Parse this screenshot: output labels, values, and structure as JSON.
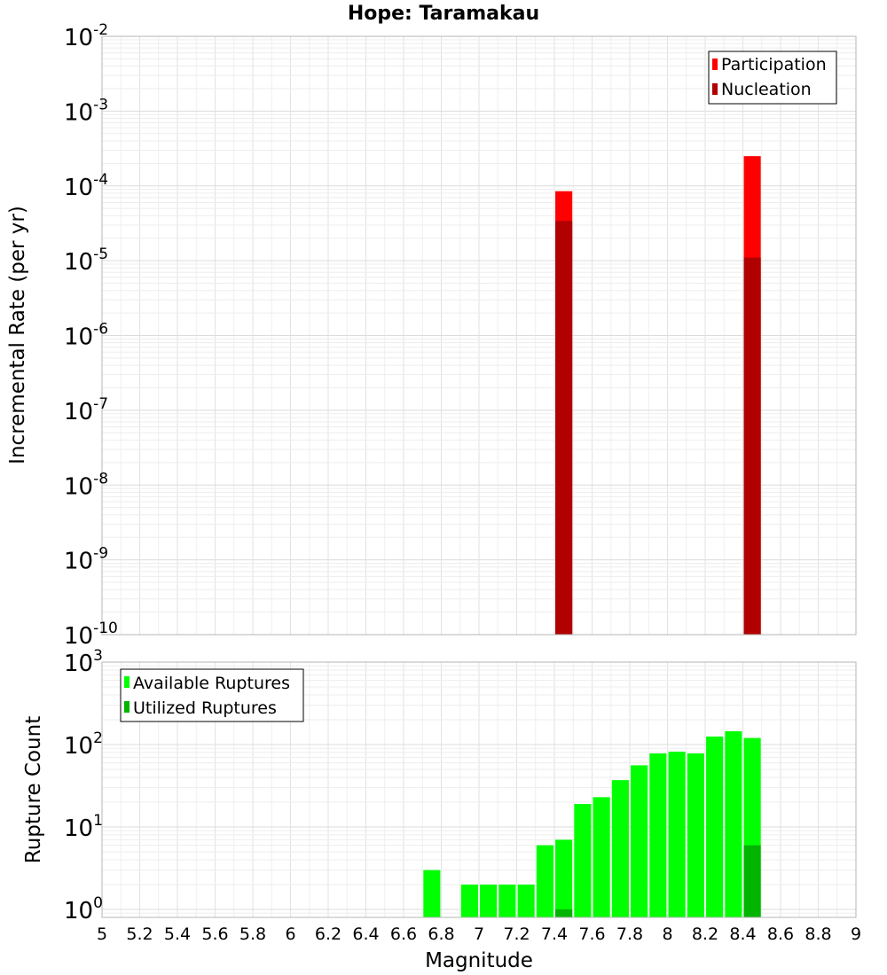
{
  "chart_data": [
    {
      "type": "bar",
      "title": "Hope: Taramakau",
      "xlabel": "",
      "ylabel": "Incremental Rate (per yr)",
      "yscale": "log",
      "ylim": [
        1e-10,
        0.01
      ],
      "xlim": [
        5,
        9
      ],
      "y_tick_exponents": [
        -10,
        -9,
        -8,
        -7,
        -6,
        -5,
        -4,
        -3,
        -2
      ],
      "legend_position": "top-right",
      "bar_width": 0.09,
      "series": [
        {
          "name": "Participation",
          "color": "#ff0000",
          "x": [
            7.45,
            8.45
          ],
          "values": [
            8.5e-05,
            0.00025
          ]
        },
        {
          "name": "Nucleation",
          "color": "#b00000",
          "x": [
            7.45,
            8.45
          ],
          "values": [
            3.4e-05,
            1.1e-05
          ]
        }
      ]
    },
    {
      "type": "bar",
      "title": "",
      "xlabel": "Magnitude",
      "ylabel": "Rupture Count",
      "yscale": "log",
      "ylim": [
        0.8,
        1000
      ],
      "xlim": [
        5,
        9
      ],
      "y_tick_exponents": [
        0,
        1,
        2,
        3
      ],
      "x_ticks": [
        "5",
        "5.2",
        "5.4",
        "5.6",
        "5.8",
        "6",
        "6.2",
        "6.4",
        "6.6",
        "6.8",
        "7",
        "7.2",
        "7.4",
        "7.6",
        "7.8",
        "8",
        "8.2",
        "8.4",
        "8.6",
        "8.8",
        "9"
      ],
      "legend_position": "top-left",
      "bar_width": 0.09,
      "series": [
        {
          "name": "Available Ruptures",
          "color": "#00ff00",
          "x": [
            6.75,
            6.95,
            7.05,
            7.15,
            7.25,
            7.35,
            7.45,
            7.55,
            7.65,
            7.75,
            7.85,
            7.95,
            8.05,
            8.15,
            8.25,
            8.35,
            8.45
          ],
          "values": [
            3,
            2,
            2,
            2,
            2,
            6,
            7,
            19,
            23,
            37,
            56,
            78,
            82,
            78,
            125,
            145,
            120
          ]
        },
        {
          "name": "Utilized Ruptures",
          "color": "#00b400",
          "x": [
            7.45,
            8.45
          ],
          "values": [
            1,
            6
          ]
        }
      ]
    }
  ]
}
